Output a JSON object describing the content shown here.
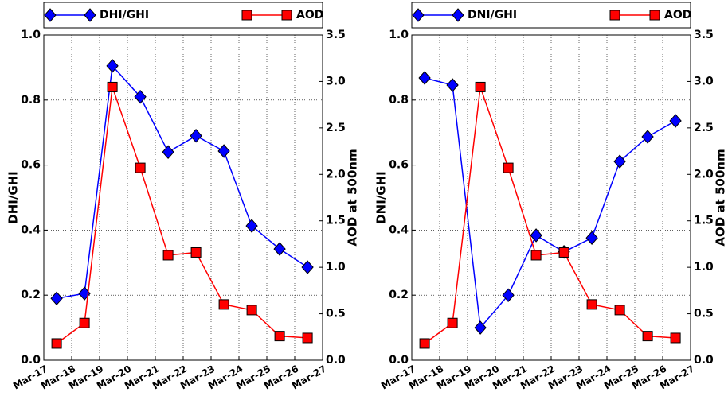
{
  "chart_data": [
    {
      "type": "line",
      "categories": [
        "Mar-17",
        "Mar-18",
        "Mar-19",
        "Mar-20",
        "Mar-21",
        "Mar-22",
        "Mar-23",
        "Mar-24",
        "Mar-25",
        "Mar-26",
        "Mar-27"
      ],
      "y_label": "DHI/GHI",
      "y2_label": "AOD at 500nm",
      "ylim": [
        0,
        1
      ],
      "yticks": [
        {
          "value": 0,
          "label": "0.0"
        },
        0.2,
        0.4,
        0.6,
        0.8,
        {
          "value": 1,
          "label": "1.0"
        }
      ],
      "y2lim": [
        0,
        3.5
      ],
      "y2ticks": [
        {
          "value": 0,
          "label": "0.0"
        },
        0.5,
        {
          "value": 1,
          "label": "1.0"
        },
        1.5,
        {
          "value": 2,
          "label": "2.0"
        },
        2.5,
        {
          "value": 3,
          "label": "3.0"
        },
        3.5
      ],
      "grid": true,
      "series": [
        {
          "name": "DHI/GHI",
          "color": "#0000ff",
          "marker": "diamond",
          "values": [
            0.19,
            0.205,
            0.905,
            0.81,
            0.64,
            0.69,
            0.643,
            0.413,
            0.342,
            0.286,
            null
          ]
        },
        {
          "name": "AOD",
          "color": "#ff0000",
          "marker": "square",
          "axis": "y2",
          "values": [
            0.18,
            0.4,
            2.94,
            2.07,
            1.13,
            1.16,
            0.6,
            0.54,
            0.26,
            0.24,
            null
          ]
        }
      ]
    },
    {
      "type": "line",
      "categories": [
        "Mar-17",
        "Mar-18",
        "Mar-19",
        "Mar-20",
        "Mar-21",
        "Mar-22",
        "Mar-23",
        "Mar-24",
        "Mar-25",
        "Mar-26",
        "Mar-27"
      ],
      "y_label": "DNI/GHI",
      "y2_label": "AOD at 500nm",
      "ylim": [
        0,
        1
      ],
      "yticks": [
        {
          "value": 0,
          "label": "0.0"
        },
        0.2,
        0.4,
        0.6,
        0.8,
        {
          "value": 1,
          "label": "1.0"
        }
      ],
      "y2lim": [
        0,
        3.5
      ],
      "y2ticks": [
        {
          "value": 0,
          "label": "0.0"
        },
        0.5,
        {
          "value": 1,
          "label": "1.0"
        },
        1.5,
        {
          "value": 2,
          "label": "2.0"
        },
        2.5,
        {
          "value": 3,
          "label": "3.0"
        },
        3.5
      ],
      "grid": true,
      "series": [
        {
          "name": "DNI/GHI",
          "color": "#0000ff",
          "marker": "diamond",
          "values": [
            0.868,
            0.846,
            0.1,
            0.2,
            0.384,
            0.333,
            0.376,
            0.611,
            0.687,
            0.736,
            null
          ]
        },
        {
          "name": "AOD",
          "color": "#ff0000",
          "marker": "square",
          "axis": "y2",
          "values": [
            0.18,
            0.4,
            2.94,
            2.07,
            1.13,
            1.16,
            0.6,
            0.54,
            0.26,
            0.24,
            null
          ]
        }
      ]
    }
  ]
}
